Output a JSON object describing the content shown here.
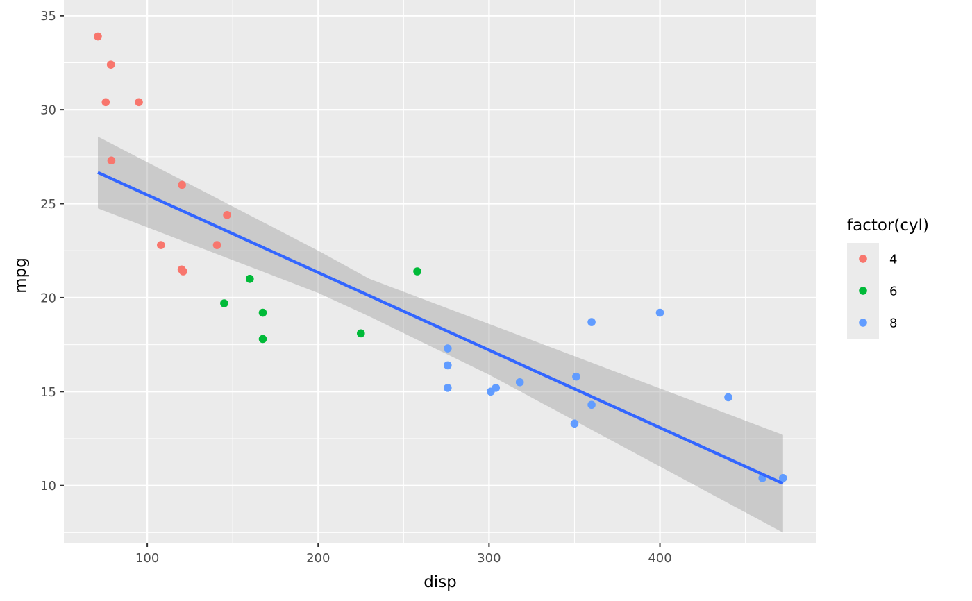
{
  "chart_data": {
    "type": "scatter",
    "xlabel": "disp",
    "ylabel": "mpg",
    "xlim": [
      51.2,
      491.6
    ],
    "ylim": [
      6.96,
      35.84
    ],
    "x_ticks": [
      100,
      200,
      300,
      400
    ],
    "x_tick_labels": [
      "100",
      "200",
      "300",
      "400"
    ],
    "x_minor_ticks": [
      150,
      250,
      350,
      450
    ],
    "y_ticks": [
      10,
      15,
      20,
      25,
      30,
      35
    ],
    "y_tick_labels": [
      "10",
      "15",
      "20",
      "25",
      "30",
      "35"
    ],
    "y_minor_ticks": [
      7.5,
      12.5,
      17.5,
      22.5,
      27.5,
      32.5
    ],
    "grid": true,
    "legend": {
      "title": "factor(cyl)",
      "placement": "right",
      "entries": [
        {
          "label": "4",
          "color": "#F8766D"
        },
        {
          "label": "6",
          "color": "#00BA38"
        },
        {
          "label": "8",
          "color": "#619CFF"
        }
      ]
    },
    "series": [
      {
        "name": "4",
        "color": "#F8766D",
        "points": [
          {
            "x": 108,
            "y": 22.8
          },
          {
            "x": 146.7,
            "y": 24.4
          },
          {
            "x": 140.8,
            "y": 22.8
          },
          {
            "x": 78.7,
            "y": 32.4
          },
          {
            "x": 75.7,
            "y": 30.4
          },
          {
            "x": 71.1,
            "y": 33.9
          },
          {
            "x": 120.1,
            "y": 21.5
          },
          {
            "x": 79,
            "y": 27.3
          },
          {
            "x": 120.3,
            "y": 26.0
          },
          {
            "x": 95.1,
            "y": 30.4
          },
          {
            "x": 121,
            "y": 21.4
          }
        ]
      },
      {
        "name": "6",
        "color": "#00BA38",
        "points": [
          {
            "x": 160,
            "y": 21.0
          },
          {
            "x": 160,
            "y": 21.0
          },
          {
            "x": 258,
            "y": 21.4
          },
          {
            "x": 225,
            "y": 18.1
          },
          {
            "x": 167.6,
            "y": 19.2
          },
          {
            "x": 167.6,
            "y": 17.8
          },
          {
            "x": 145,
            "y": 19.7
          }
        ]
      },
      {
        "name": "8",
        "color": "#619CFF",
        "points": [
          {
            "x": 360,
            "y": 18.7
          },
          {
            "x": 360,
            "y": 14.3
          },
          {
            "x": 275.8,
            "y": 16.4
          },
          {
            "x": 275.8,
            "y": 17.3
          },
          {
            "x": 275.8,
            "y": 15.2
          },
          {
            "x": 472,
            "y": 10.4
          },
          {
            "x": 460,
            "y": 10.4
          },
          {
            "x": 440,
            "y": 14.7
          },
          {
            "x": 318,
            "y": 15.5
          },
          {
            "x": 304,
            "y": 15.2
          },
          {
            "x": 350,
            "y": 13.3
          },
          {
            "x": 400,
            "y": 19.2
          },
          {
            "x": 351,
            "y": 15.8
          },
          {
            "x": 301,
            "y": 15.0
          }
        ]
      }
    ],
    "regression": {
      "color": "#3366FF",
      "band_color": "#999999",
      "line": [
        {
          "x": 71.1,
          "y": 26.66
        },
        {
          "x": 472,
          "y": 10.11
        }
      ],
      "band": [
        {
          "x": 71.1,
          "lower": 24.75,
          "upper": 28.57
        },
        {
          "x": 200,
          "lower": 20.25,
          "upper": 22.5
        },
        {
          "x": 230,
          "lower": 19.0,
          "upper": 21.0
        },
        {
          "x": 300,
          "lower": 15.9,
          "upper": 18.6
        },
        {
          "x": 472,
          "lower": 7.5,
          "upper": 12.7
        }
      ]
    }
  }
}
